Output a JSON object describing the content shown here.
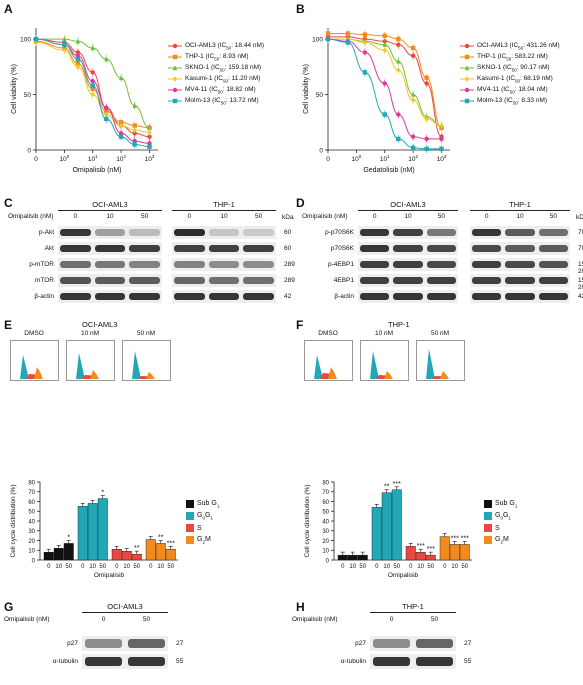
{
  "panels": {
    "A": {
      "letter": "A",
      "xlabel": "Omipalisib (nM)",
      "ylabel": "Cell viability (%)",
      "legend": [
        {
          "name": "OCI-AML3",
          "ic50": "18.44 nM",
          "color": "#e8493f",
          "marker": "circle"
        },
        {
          "name": "THP-1",
          "ic50": "8.93 nM",
          "color": "#f28a1e",
          "marker": "square"
        },
        {
          "name": "SKNO-1",
          "ic50": "159.18 nM",
          "color": "#72bd3a",
          "marker": "triangle"
        },
        {
          "name": "Kasumi-1",
          "ic50": "11.20 nM",
          "color": "#f2c91e",
          "marker": "diamond"
        },
        {
          "name": "MV4-11",
          "ic50": "18.82 nM",
          "color": "#e0399b",
          "marker": "circle"
        },
        {
          "name": "Molm-13",
          "ic50": "13.72 nM",
          "color": "#22a7b6",
          "marker": "square"
        }
      ]
    },
    "B": {
      "letter": "B",
      "xlabel": "Gedatolisib (nM)",
      "ylabel": "Cell viability (%)",
      "legend": [
        {
          "name": "OCI-AML3",
          "ic50": "431.26 nM",
          "color": "#e8493f",
          "marker": "circle"
        },
        {
          "name": "THP-1",
          "ic50": "583.22 nM",
          "color": "#f28a1e",
          "marker": "square"
        },
        {
          "name": "SKNO-1",
          "ic50": "90.17 nM",
          "color": "#72bd3a",
          "marker": "triangle"
        },
        {
          "name": "Kasumi-1",
          "ic50": "68.19 nM",
          "color": "#f2c91e",
          "marker": "diamond"
        },
        {
          "name": "MV4-11",
          "ic50": "18.04 nM",
          "color": "#e0399b",
          "marker": "circle"
        },
        {
          "name": "Molm-13",
          "ic50": "8.33 nM",
          "color": "#22a7b6",
          "marker": "square"
        }
      ]
    },
    "C": {
      "letter": "C",
      "drug_label": "Omipalisib (nM)",
      "cell_lines": [
        "OCI-AML3",
        "THP-1"
      ],
      "doses": [
        "0",
        "10",
        "50"
      ],
      "kda_header": "kDa",
      "rows": [
        {
          "label": "p-Akt",
          "kda": "60"
        },
        {
          "label": "Akt",
          "kda": "60"
        },
        {
          "label": "p-mTOR",
          "kda": "289"
        },
        {
          "label": "mTOR",
          "kda": "289"
        },
        {
          "label": "β-actin",
          "kda": "42"
        }
      ]
    },
    "D": {
      "letter": "D",
      "drug_label": "Omipalisib (nM)",
      "cell_lines": [
        "OCI-AML3",
        "THP-1"
      ],
      "doses": [
        "0",
        "10",
        "50"
      ],
      "kda_header": "kDa",
      "rows": [
        {
          "label": "p-p70S6K",
          "kda": "70"
        },
        {
          "label": "p70S6K",
          "kda": "70"
        },
        {
          "label": "p-4EBP1",
          "kda": "15-20"
        },
        {
          "label": "4EBP1",
          "kda": "15-20"
        },
        {
          "label": "β-actin",
          "kda": "42"
        }
      ]
    },
    "E": {
      "letter": "E",
      "cell_line": "OCI-AML3",
      "hist_labels": [
        "DMSO",
        "10 nM",
        "50 nM"
      ],
      "ylabel": "Cell cycle distribution (%)",
      "xlabel": "Omipalisib",
      "doses": [
        "0",
        "10",
        "50"
      ],
      "sig": {
        "subg1": [
          "",
          "",
          "*"
        ],
        "g0g1": [
          "",
          "",
          "*"
        ],
        "s": [
          "",
          "",
          "**"
        ],
        "g2m": [
          "",
          "**",
          "***"
        ]
      }
    },
    "F": {
      "letter": "F",
      "cell_line": "THP-1",
      "hist_labels": [
        "DMSO",
        "10 nM",
        "50 nM"
      ],
      "ylabel": "Cell cycle distribution (%)",
      "xlabel": "Omipalisib",
      "doses": [
        "0",
        "10",
        "50"
      ],
      "sig": {
        "subg1": [
          "",
          "",
          ""
        ],
        "g0g1": [
          "",
          "**",
          "***"
        ],
        "s": [
          "",
          "***",
          "***"
        ],
        "g2m": [
          "",
          "***",
          "***"
        ]
      }
    },
    "G": {
      "letter": "G",
      "cell_line": "OCI-AML3",
      "drug_label": "Omipalisib (nM)",
      "doses": [
        "0",
        "50"
      ],
      "rows": [
        {
          "label": "p27",
          "kda": "27"
        },
        {
          "label": "α-tubulin",
          "kda": "55"
        }
      ]
    },
    "H": {
      "letter": "H",
      "cell_line": "THP-1",
      "drug_label": "Omipalisib (nM)",
      "doses": [
        "0",
        "50"
      ],
      "rows": [
        {
          "label": "p27",
          "kda": "27"
        },
        {
          "label": "α-tubulin",
          "kda": "55"
        }
      ]
    }
  },
  "cycle_legend": [
    {
      "label": "Sub G",
      "sub": "1",
      "color": "#111111"
    },
    {
      "label": "G",
      "sub": "0",
      "label2": "G",
      "sub2": "1",
      "color": "#22a7b6"
    },
    {
      "label": "S",
      "sub": "",
      "color": "#e8493f"
    },
    {
      "label": "G",
      "sub": "2",
      "label2": "M",
      "sub2": "",
      "color": "#f28a1e"
    }
  ],
  "chart_data": [
    {
      "panel": "A",
      "type": "line",
      "xlabel": "Omipalisib (nM)",
      "ylabel": "Cell viability (%)",
      "xscale": "log",
      "xticks": [
        "0",
        "10^0",
        "10^1",
        "10^2",
        "10^3"
      ],
      "yticks": [
        0,
        50,
        100
      ],
      "ylim": [
        0,
        110
      ],
      "x": [
        0.1,
        1,
        3,
        10,
        30,
        100,
        300,
        1000
      ],
      "series": [
        {
          "name": "OCI-AML3 (IC50: 18.44 nM)",
          "values": [
            100,
            97,
            88,
            70,
            38,
            22,
            15,
            12
          ]
        },
        {
          "name": "THP-1 (IC50: 8.93 nM)",
          "values": [
            98,
            92,
            78,
            55,
            35,
            25,
            22,
            20
          ]
        },
        {
          "name": "SKNO-1 (IC50: 159.18 nM)",
          "values": [
            100,
            100,
            98,
            92,
            82,
            65,
            40,
            20
          ]
        },
        {
          "name": "Kasumi-1 (IC50: 11.20 nM)",
          "values": [
            97,
            90,
            75,
            50,
            32,
            22,
            18,
            16
          ]
        },
        {
          "name": "MV4-11 (IC50: 18.82 nM)",
          "values": [
            100,
            95,
            85,
            62,
            38,
            15,
            8,
            6
          ]
        },
        {
          "name": "Molm-13 (IC50: 13.72 nM)",
          "values": [
            100,
            95,
            82,
            58,
            28,
            12,
            5,
            3
          ]
        }
      ]
    },
    {
      "panel": "B",
      "type": "line",
      "xlabel": "Gedatolisib (nM)",
      "ylabel": "Cell viability (%)",
      "xscale": "log",
      "xticks": [
        "0",
        "10^0",
        "10^1",
        "10^2",
        "10^3"
      ],
      "yticks": [
        0,
        50,
        100
      ],
      "ylim": [
        0,
        110
      ],
      "x": [
        0.1,
        0.5,
        2,
        10,
        30,
        100,
        300,
        1000
      ],
      "series": [
        {
          "name": "OCI-AML3 (IC50: 431.26 nM)",
          "values": [
            102,
            102,
            100,
            98,
            95,
            85,
            60,
            12
          ]
        },
        {
          "name": "THP-1 (IC50: 583.22 nM)",
          "values": [
            105,
            105,
            104,
            103,
            100,
            92,
            65,
            20
          ]
        },
        {
          "name": "SKNO-1 (IC50: 90.17 nM)",
          "values": [
            100,
            100,
            98,
            95,
            80,
            50,
            30,
            22
          ]
        },
        {
          "name": "Kasumi-1 (IC50: 68.19 nM)",
          "values": [
            100,
            100,
            97,
            90,
            72,
            45,
            28,
            22
          ]
        },
        {
          "name": "MV4-11 (IC50: 18.04 nM)",
          "values": [
            100,
            98,
            88,
            60,
            32,
            12,
            10,
            10
          ]
        },
        {
          "name": "Molm-13 (IC50: 8.33 nM)",
          "values": [
            100,
            97,
            70,
            32,
            10,
            2,
            1,
            1
          ]
        }
      ]
    },
    {
      "panel": "E",
      "type": "bar",
      "xlabel": "Omipalisib",
      "ylabel": "Cell cycle distribution (%)",
      "ylim": [
        0,
        80
      ],
      "yticks": [
        0,
        10,
        20,
        30,
        40,
        50,
        60,
        70,
        80
      ],
      "categories": [
        "0",
        "10",
        "50"
      ],
      "series": [
        {
          "name": "Sub G1",
          "values": [
            8,
            12,
            17
          ]
        },
        {
          "name": "G0G1",
          "values": [
            55,
            58,
            63
          ]
        },
        {
          "name": "S",
          "values": [
            11,
            9,
            6
          ]
        },
        {
          "name": "G2M",
          "values": [
            21,
            17,
            11
          ]
        }
      ]
    },
    {
      "panel": "F",
      "type": "bar",
      "xlabel": "Omipalisib",
      "ylabel": "Cell cycle distribution (%)",
      "ylim": [
        0,
        80
      ],
      "yticks": [
        0,
        10,
        20,
        30,
        40,
        50,
        60,
        70,
        80
      ],
      "categories": [
        "0",
        "10",
        "50"
      ],
      "series": [
        {
          "name": "Sub G1",
          "values": [
            5,
            5,
            5
          ]
        },
        {
          "name": "G0G1",
          "values": [
            54,
            69,
            72
          ]
        },
        {
          "name": "S",
          "values": [
            14,
            8,
            5
          ]
        },
        {
          "name": "G2M",
          "values": [
            24,
            16,
            16
          ]
        }
      ]
    }
  ]
}
